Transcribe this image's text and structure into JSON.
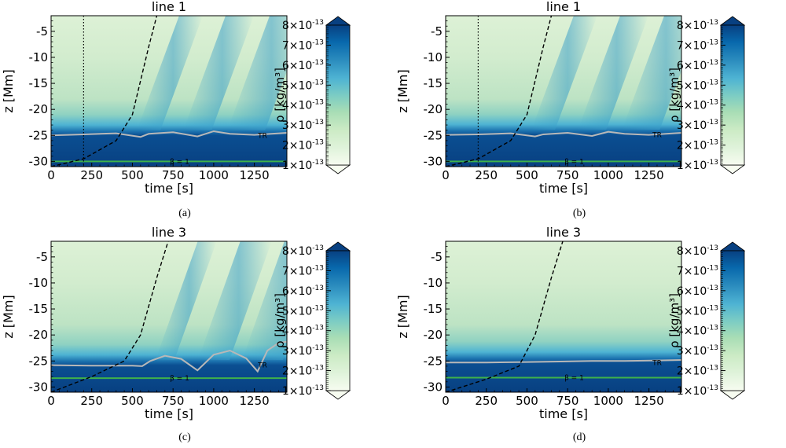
{
  "chart_data": [
    {
      "type": "heatmap",
      "panel_label": "(a)",
      "title": "line 1",
      "xlabel": "time [s]",
      "ylabel": "z [Mm]",
      "xlim": [
        0,
        1450
      ],
      "ylim": [
        -31,
        -2
      ],
      "xticks": [
        0,
        250,
        500,
        750,
        1000,
        1250
      ],
      "yticks": [
        -5,
        -10,
        -15,
        -20,
        -25,
        -30
      ],
      "colorbar": {
        "label": "ρ [kg/m³]",
        "range": [
          1e-13,
          8e-13
        ],
        "tick_values": [
          1,
          2,
          3,
          4,
          5,
          6,
          7,
          8
        ],
        "tick_labels": [
          "1×10-13",
          "2×10-13",
          "3×10-13",
          "4×10-13",
          "5×10-13",
          "6×10-13",
          "7×10-13",
          "8×10-13"
        ],
        "colormap": "GnBu"
      },
      "vertical_marker_time": 200,
      "dashed_curve": [
        [
          0,
          -31
        ],
        [
          200,
          -29.5
        ],
        [
          400,
          -26
        ],
        [
          500,
          -21
        ],
        [
          600,
          -8
        ],
        [
          650,
          -2
        ]
      ],
      "tr_contour": {
        "label": "TR",
        "points": [
          [
            0,
            -25.0
          ],
          [
            200,
            -24.8
          ],
          [
            400,
            -24.6
          ],
          [
            550,
            -25.3
          ],
          [
            600,
            -24.7
          ],
          [
            750,
            -24.4
          ],
          [
            900,
            -25.2
          ],
          [
            1000,
            -24.2
          ],
          [
            1100,
            -24.7
          ],
          [
            1250,
            -24.9
          ],
          [
            1450,
            -24.5
          ]
        ]
      },
      "beta_contour": {
        "label": "β = 1",
        "z": -30.0
      },
      "wave_fronts": [
        [
          600,
          15
        ],
        [
          900,
          18
        ],
        [
          1200,
          24
        ]
      ]
    },
    {
      "type": "heatmap",
      "panel_label": "(b)",
      "title": "line 1",
      "xlabel": "time [s]",
      "ylabel": "z [Mm]",
      "xlim": [
        0,
        1450
      ],
      "ylim": [
        -31,
        -2
      ],
      "xticks": [
        0,
        250,
        500,
        750,
        1000,
        1250
      ],
      "yticks": [
        -5,
        -10,
        -15,
        -20,
        -25,
        -30
      ],
      "colorbar": {
        "label": "ρ [kg/m³]",
        "range": [
          1e-13,
          8e-13
        ],
        "tick_values": [
          1,
          2,
          3,
          4,
          5,
          6,
          7,
          8
        ],
        "tick_labels": [
          "1×10-13",
          "2×10-13",
          "3×10-13",
          "4×10-13",
          "5×10-13",
          "6×10-13",
          "7×10-13",
          "8×10-13"
        ],
        "colormap": "GnBu"
      },
      "vertical_marker_time": 200,
      "dashed_curve": [
        [
          0,
          -31
        ],
        [
          200,
          -29.5
        ],
        [
          400,
          -26
        ],
        [
          500,
          -21
        ],
        [
          600,
          -8
        ],
        [
          650,
          -2
        ]
      ],
      "tr_contour": {
        "label": "TR",
        "points": [
          [
            0,
            -24.9
          ],
          [
            200,
            -24.8
          ],
          [
            400,
            -24.6
          ],
          [
            550,
            -25.2
          ],
          [
            600,
            -24.8
          ],
          [
            750,
            -24.5
          ],
          [
            900,
            -25.1
          ],
          [
            1000,
            -24.3
          ],
          [
            1100,
            -24.7
          ],
          [
            1250,
            -24.9
          ],
          [
            1450,
            -24.5
          ]
        ]
      },
      "beta_contour": {
        "label": "β = 1",
        "z": -30.0
      },
      "wave_fronts": [
        [
          600,
          15
        ],
        [
          900,
          18
        ],
        [
          1200,
          24
        ]
      ]
    },
    {
      "type": "heatmap",
      "panel_label": "(c)",
      "title": "line 3",
      "xlabel": "time [s]",
      "ylabel": "z [Mm]",
      "xlim": [
        0,
        1450
      ],
      "ylim": [
        -31,
        -2
      ],
      "xticks": [
        0,
        250,
        500,
        750,
        1000,
        1250
      ],
      "yticks": [
        -5,
        -10,
        -15,
        -20,
        -25,
        -30
      ],
      "colorbar": {
        "label": "ρ [kg/m³]",
        "range": [
          1e-13,
          8e-13
        ],
        "tick_values": [
          1,
          2,
          3,
          4,
          5,
          6,
          7,
          8
        ],
        "tick_labels": [
          "1×10-13",
          "2×10-13",
          "3×10-13",
          "4×10-13",
          "5×10-13",
          "6×10-13",
          "7×10-13",
          "8×10-13"
        ],
        "colormap": "GnBu"
      },
      "dashed_curve": [
        [
          0,
          -31
        ],
        [
          250,
          -28
        ],
        [
          450,
          -25
        ],
        [
          550,
          -20
        ],
        [
          650,
          -9
        ],
        [
          720,
          -2
        ]
      ],
      "tr_contour": {
        "label": "TR",
        "points": [
          [
            0,
            -25.8
          ],
          [
            250,
            -25.9
          ],
          [
            500,
            -25.9
          ],
          [
            560,
            -26.0
          ],
          [
            610,
            -25.0
          ],
          [
            700,
            -24.0
          ],
          [
            800,
            -24.6
          ],
          [
            900,
            -26.8
          ],
          [
            1000,
            -23.8
          ],
          [
            1100,
            -23.0
          ],
          [
            1200,
            -24.5
          ],
          [
            1270,
            -27.0
          ],
          [
            1330,
            -23.0
          ],
          [
            1400,
            -21.5
          ],
          [
            1450,
            -21.3
          ]
        ]
      },
      "beta_contour": {
        "label": "β = 1",
        "z": -28.3
      },
      "wave_fronts": [
        [
          700,
          12
        ],
        [
          1000,
          20
        ],
        [
          1300,
          26
        ]
      ]
    },
    {
      "type": "heatmap",
      "panel_label": "(d)",
      "title": "line 3",
      "xlabel": "time [s]",
      "ylabel": "z [Mm]",
      "xlim": [
        0,
        1450
      ],
      "ylim": [
        -31,
        -2
      ],
      "xticks": [
        0,
        250,
        500,
        750,
        1000,
        1250
      ],
      "yticks": [
        -5,
        -10,
        -15,
        -20,
        -25,
        -30
      ],
      "colorbar": {
        "label": "ρ [kg/m³]",
        "range": [
          1e-13,
          8e-13
        ],
        "tick_values": [
          1,
          2,
          3,
          4,
          5,
          6,
          7,
          8
        ],
        "tick_labels": [
          "1×10-13",
          "2×10-13",
          "3×10-13",
          "4×10-13",
          "5×10-13",
          "6×10-13",
          "7×10-13",
          "8×10-13"
        ],
        "colormap": "GnBu"
      },
      "dashed_curve": [
        [
          0,
          -31
        ],
        [
          250,
          -28.5
        ],
        [
          450,
          -26
        ],
        [
          550,
          -20
        ],
        [
          650,
          -9
        ],
        [
          720,
          -2
        ]
      ],
      "tr_contour": {
        "label": "TR",
        "points": [
          [
            0,
            -25.3
          ],
          [
            250,
            -25.3
          ],
          [
            500,
            -25.2
          ],
          [
            700,
            -25.1
          ],
          [
            900,
            -25.0
          ],
          [
            1100,
            -25.0
          ],
          [
            1300,
            -24.9
          ],
          [
            1450,
            -24.8
          ]
        ]
      },
      "beta_contour": {
        "label": "β = 1",
        "z": -28.2
      },
      "wave_fronts": []
    }
  ]
}
